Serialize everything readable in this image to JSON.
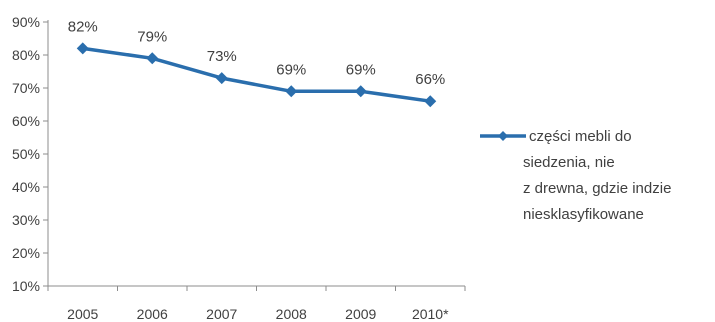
{
  "chart_data": {
    "type": "line",
    "categories": [
      "2005",
      "2006",
      "2007",
      "2008",
      "2009",
      "2010*"
    ],
    "series": [
      {
        "name": "części mebli do siedzenia, nie z drewna, gdzie indziej niesklasyfikowane",
        "values": [
          82,
          79,
          73,
          69,
          69,
          66
        ]
      }
    ],
    "data_labels": [
      "82%",
      "79%",
      "73%",
      "69%",
      "69%",
      "66%"
    ],
    "y_ticks": [
      "90%",
      "80%",
      "70%",
      "60%",
      "50%",
      "40%",
      "30%",
      "20%",
      "10%"
    ],
    "ylim": [
      10,
      90
    ],
    "grid": false,
    "legend_position": "right",
    "legend_lines": [
      "części mebli do",
      "siedzenia, nie",
      "z drewna, gdzie indzie",
      "niesklasyfikowane"
    ],
    "series_color": "#2a6ead",
    "axis_color": "#8c8c8c",
    "title": "",
    "xlabel": "",
    "ylabel": ""
  }
}
